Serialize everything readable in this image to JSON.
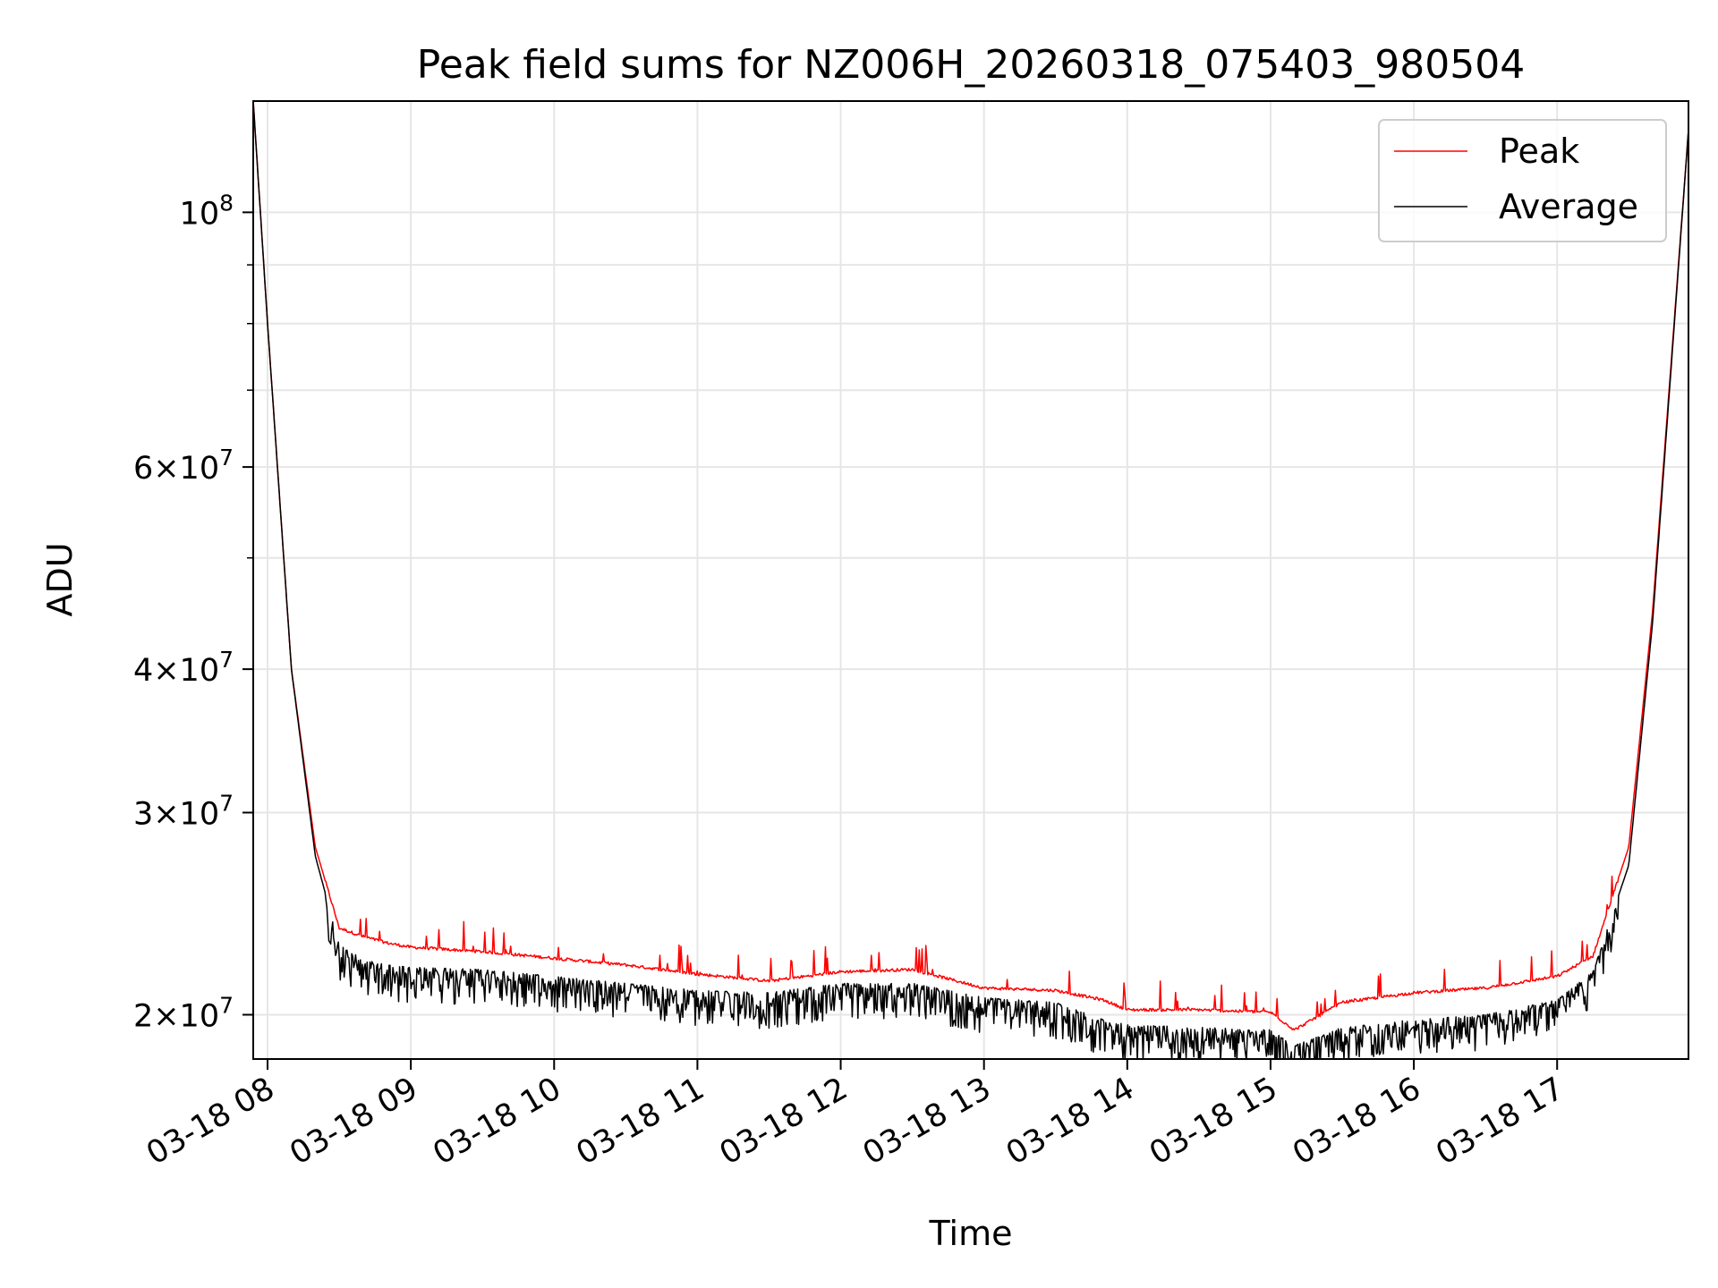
{
  "chart_data": {
    "type": "line",
    "title": "Peak field sums for NZ006H_20260318_075403_980504",
    "xlabel": "Time",
    "ylabel": "ADU",
    "yscale": "log",
    "ylim": [
      18300000,
      125000000
    ],
    "xlim": [
      "2026-03-18 07:54",
      "2026-03-18 17:55"
    ],
    "grid": true,
    "legend_position": "top-right",
    "x_ticks": [
      {
        "t": "2026-03-18 08:00",
        "label": "03-18 08"
      },
      {
        "t": "2026-03-18 09:00",
        "label": "03-18 09"
      },
      {
        "t": "2026-03-18 10:00",
        "label": "03-18 10"
      },
      {
        "t": "2026-03-18 11:00",
        "label": "03-18 11"
      },
      {
        "t": "2026-03-18 12:00",
        "label": "03-18 12"
      },
      {
        "t": "2026-03-18 13:00",
        "label": "03-18 13"
      },
      {
        "t": "2026-03-18 14:00",
        "label": "03-18 14"
      },
      {
        "t": "2026-03-18 15:00",
        "label": "03-18 15"
      },
      {
        "t": "2026-03-18 16:00",
        "label": "03-18 16"
      },
      {
        "t": "2026-03-18 17:00",
        "label": "03-18 17"
      }
    ],
    "y_ticks": [
      {
        "value": 20000000,
        "mant": "2",
        "exp": "7"
      },
      {
        "value": 30000000,
        "mant": "3",
        "exp": "7"
      },
      {
        "value": 40000000,
        "mant": "4",
        "exp": "7"
      },
      {
        "value": 60000000,
        "mant": "6",
        "exp": "7"
      },
      {
        "value": 100000000,
        "mant": "",
        "exp": "8"
      }
    ],
    "y_minor_ticks": [
      50000000,
      70000000,
      80000000,
      90000000
    ],
    "series": [
      {
        "name": "Peak",
        "color": "#ff0000",
        "points": [
          [
            "2026-03-18 07:54",
            125000000
          ],
          [
            "2026-03-18 08:00",
            80000000
          ],
          [
            "2026-03-18 08:10",
            40000000
          ],
          [
            "2026-03-18 08:20",
            28000000
          ],
          [
            "2026-03-18 08:30",
            23800000
          ],
          [
            "2026-03-18 08:40",
            23400000
          ],
          [
            "2026-03-18 08:50",
            23100000
          ],
          [
            "2026-03-18 09:00",
            22900000
          ],
          [
            "2026-03-18 09:30",
            22700000
          ],
          [
            "2026-03-18 10:00",
            22400000
          ],
          [
            "2026-03-18 10:30",
            22100000
          ],
          [
            "2026-03-18 11:00",
            21700000
          ],
          [
            "2026-03-18 11:30",
            21400000
          ],
          [
            "2026-03-18 12:00",
            21800000
          ],
          [
            "2026-03-18 12:30",
            21900000
          ],
          [
            "2026-03-18 13:00",
            21100000
          ],
          [
            "2026-03-18 13:30",
            21000000
          ],
          [
            "2026-03-18 13:50",
            20600000
          ],
          [
            "2026-03-18 14:00",
            20200000
          ],
          [
            "2026-03-18 14:30",
            20200000
          ],
          [
            "2026-03-18 15:00",
            20100000
          ],
          [
            "2026-03-18 15:10",
            19400000
          ],
          [
            "2026-03-18 15:30",
            20500000
          ],
          [
            "2026-03-18 16:00",
            20900000
          ],
          [
            "2026-03-18 16:30",
            21100000
          ],
          [
            "2026-03-18 17:00",
            21600000
          ],
          [
            "2026-03-18 17:15",
            22500000
          ],
          [
            "2026-03-18 17:30",
            28000000
          ],
          [
            "2026-03-18 17:40",
            45000000
          ],
          [
            "2026-03-18 17:55",
            118000000
          ]
        ]
      },
      {
        "name": "Average",
        "color": "#000000",
        "points": [
          [
            "2026-03-18 07:54",
            125000000
          ],
          [
            "2026-03-18 08:00",
            80000000
          ],
          [
            "2026-03-18 08:10",
            40000000
          ],
          [
            "2026-03-18 08:20",
            27500000
          ],
          [
            "2026-03-18 08:30",
            23000000
          ],
          [
            "2026-03-18 08:40",
            22400000
          ],
          [
            "2026-03-18 08:50",
            22100000
          ],
          [
            "2026-03-18 09:00",
            22000000
          ],
          [
            "2026-03-18 09:30",
            21900000
          ],
          [
            "2026-03-18 10:00",
            21600000
          ],
          [
            "2026-03-18 10:30",
            21300000
          ],
          [
            "2026-03-18 11:00",
            21000000
          ],
          [
            "2026-03-18 11:30",
            20900000
          ],
          [
            "2026-03-18 12:00",
            21300000
          ],
          [
            "2026-03-18 12:30",
            21300000
          ],
          [
            "2026-03-18 13:00",
            20700000
          ],
          [
            "2026-03-18 13:30",
            20500000
          ],
          [
            "2026-03-18 13:50",
            19800000
          ],
          [
            "2026-03-18 14:00",
            19600000
          ],
          [
            "2026-03-18 14:30",
            19500000
          ],
          [
            "2026-03-18 15:00",
            19400000
          ],
          [
            "2026-03-18 15:10",
            18800000
          ],
          [
            "2026-03-18 15:30",
            19500000
          ],
          [
            "2026-03-18 16:00",
            19800000
          ],
          [
            "2026-03-18 16:30",
            20000000
          ],
          [
            "2026-03-18 17:00",
            20600000
          ],
          [
            "2026-03-18 17:15",
            21800000
          ],
          [
            "2026-03-18 17:30",
            27000000
          ],
          [
            "2026-03-18 17:40",
            44000000
          ],
          [
            "2026-03-18 17:55",
            118000000
          ]
        ]
      }
    ]
  }
}
